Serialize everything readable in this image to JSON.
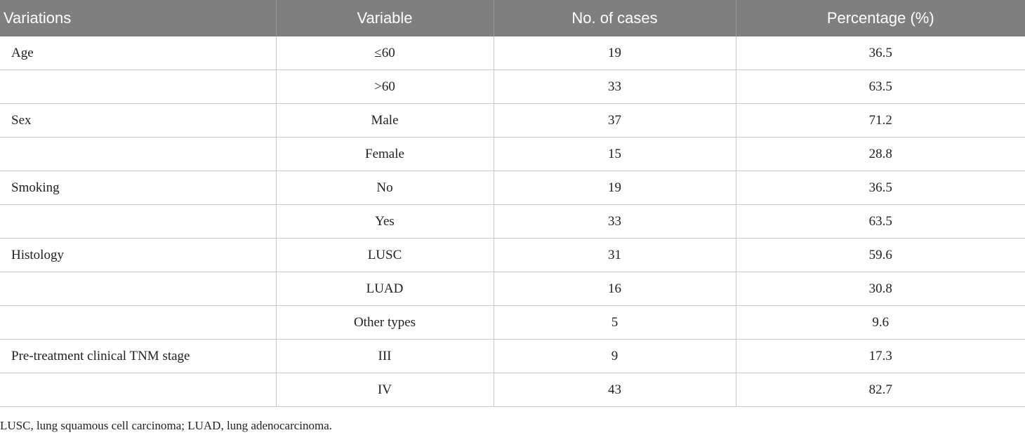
{
  "table": {
    "headers": [
      "Variations",
      "Variable",
      "No. of cases",
      "Percentage (%)"
    ],
    "rows": [
      [
        "Age",
        "≤60",
        "19",
        "36.5"
      ],
      [
        "",
        ">60",
        "33",
        "63.5"
      ],
      [
        "Sex",
        "Male",
        "37",
        "71.2"
      ],
      [
        "",
        "Female",
        "15",
        "28.8"
      ],
      [
        "Smoking",
        "No",
        "19",
        "36.5"
      ],
      [
        "",
        "Yes",
        "33",
        "63.5"
      ],
      [
        "Histology",
        "LUSC",
        "31",
        "59.6"
      ],
      [
        "",
        "LUAD",
        "16",
        "30.8"
      ],
      [
        "",
        "Other types",
        "5",
        "9.6"
      ],
      [
        "Pre-treatment clinical TNM stage",
        "III",
        "9",
        "17.3"
      ],
      [
        "",
        "IV",
        "43",
        "82.7"
      ]
    ]
  },
  "footnote": "LUSC, lung squamous cell carcinoma; LUAD, lung adenocarcinoma."
}
